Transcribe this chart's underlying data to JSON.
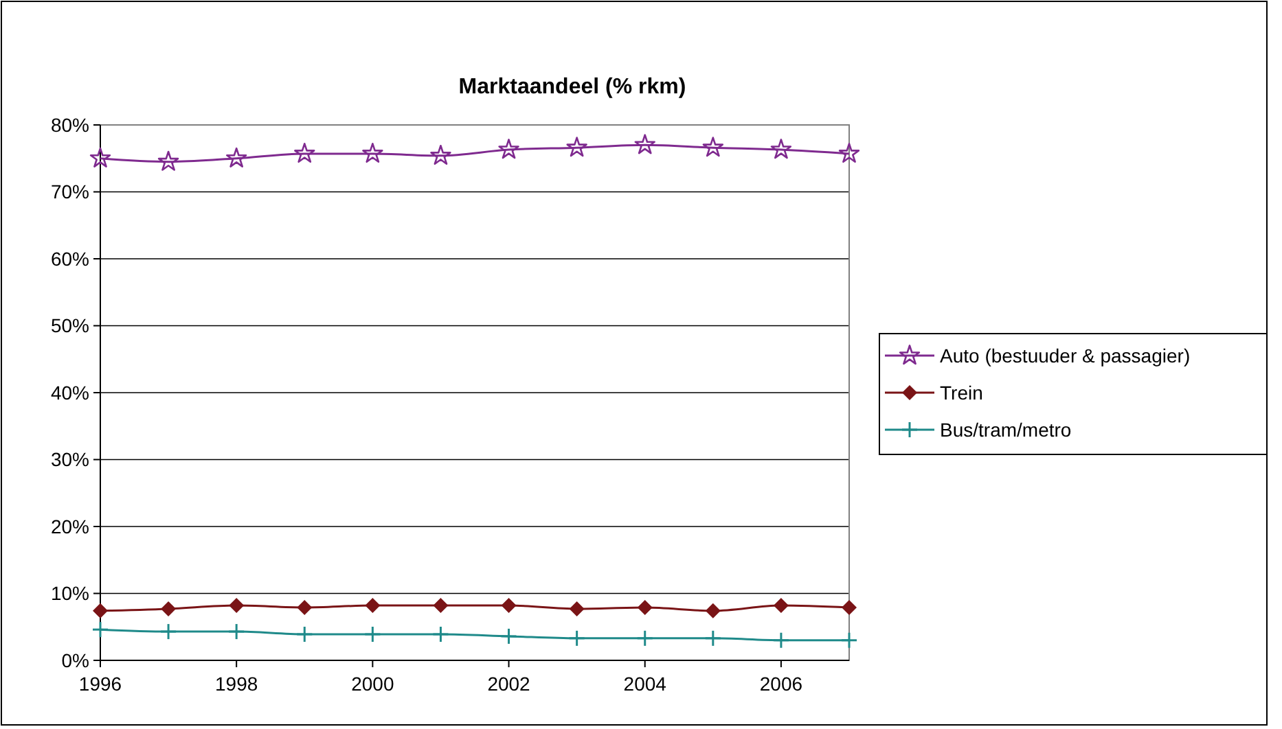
{
  "chart_data": {
    "type": "line",
    "title": "Marktaandeel (% rkm)",
    "x": [
      1996,
      1997,
      1998,
      1999,
      2000,
      2001,
      2002,
      2003,
      2004,
      2005,
      2006,
      2007
    ],
    "series": [
      {
        "name": "Auto (bestuuder & passagier)",
        "color": "#7f2a8f",
        "marker": "star",
        "values": [
          75,
          74.5,
          75,
          75.7,
          75.7,
          75.4,
          76.3,
          76.6,
          77,
          76.6,
          76.3,
          75.7
        ]
      },
      {
        "name": "Trein",
        "color": "#7a1416",
        "marker": "diamond",
        "values": [
          7.4,
          7.7,
          8.2,
          7.9,
          8.2,
          8.2,
          8.2,
          7.7,
          7.9,
          7.4,
          8.2,
          7.9
        ]
      },
      {
        "name": "Bus/tram/metro",
        "color": "#1f8a8a",
        "marker": "cross",
        "values": [
          4.6,
          4.3,
          4.3,
          3.9,
          3.9,
          3.9,
          3.6,
          3.3,
          3.3,
          3.3,
          3.0,
          3.0
        ]
      }
    ],
    "xlim": [
      1996,
      2007
    ],
    "xticks": [
      1996,
      1998,
      2000,
      2002,
      2004,
      2006
    ],
    "ylim": [
      0,
      80
    ],
    "yticks": [
      {
        "value": 0,
        "label": "0%"
      },
      {
        "value": 10,
        "label": "10%"
      },
      {
        "value": 20,
        "label": "20%"
      },
      {
        "value": 30,
        "label": "30%"
      },
      {
        "value": 40,
        "label": "40%"
      },
      {
        "value": 50,
        "label": "50%"
      },
      {
        "value": 60,
        "label": "60%"
      },
      {
        "value": 70,
        "label": "70%"
      },
      {
        "value": 80,
        "label": "80%"
      }
    ],
    "grid": "y",
    "legend": "right",
    "line_style": "solid"
  }
}
